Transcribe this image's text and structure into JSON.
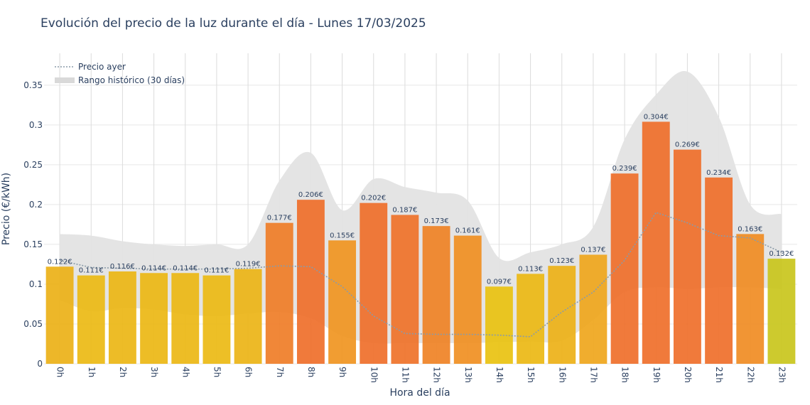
{
  "chart_data": {
    "type": "bar",
    "title": "Evolución del precio de la luz durante el día - Lunes 17/03/2025",
    "xlabel": "Hora del día",
    "ylabel": "Precio (€/kWh)",
    "ylim": [
      0,
      0.39
    ],
    "yticks": [
      "0",
      "0.05",
      "0.1",
      "0.15",
      "0.2",
      "0.25",
      "0.3",
      "0.35"
    ],
    "categories": [
      "0h",
      "1h",
      "2h",
      "3h",
      "4h",
      "5h",
      "6h",
      "7h",
      "8h",
      "9h",
      "10h",
      "11h",
      "12h",
      "13h",
      "14h",
      "15h",
      "16h",
      "17h",
      "18h",
      "19h",
      "20h",
      "21h",
      "22h",
      "23h"
    ],
    "values": [
      0.122,
      0.111,
      0.116,
      0.114,
      0.114,
      0.111,
      0.119,
      0.177,
      0.206,
      0.155,
      0.202,
      0.187,
      0.173,
      0.161,
      0.097,
      0.113,
      0.123,
      0.137,
      0.239,
      0.304,
      0.269,
      0.234,
      0.163,
      0.132
    ],
    "value_labels": [
      "0.122€",
      "0.111€",
      "0.116€",
      "0.114€",
      "0.114€",
      "0.111€",
      "0.119€",
      "0.177€",
      "0.206€",
      "0.155€",
      "0.202€",
      "0.187€",
      "0.173€",
      "0.161€",
      "0.097€",
      "0.113€",
      "0.123€",
      "0.137€",
      "0.239€",
      "0.304€",
      "0.269€",
      "0.234€",
      "0.163€",
      "0.132€"
    ],
    "series_lines": [
      {
        "name": "Precio ayer",
        "style": "dotted",
        "color": "#8a9ba8",
        "values": [
          0.13,
          0.121,
          0.12,
          0.119,
          0.119,
          0.119,
          0.12,
          0.123,
          0.122,
          0.097,
          0.06,
          0.038,
          0.037,
          0.037,
          0.036,
          0.034,
          0.065,
          0.09,
          0.13,
          0.19,
          0.177,
          0.161,
          0.158,
          0.14
        ]
      }
    ],
    "bands": [
      {
        "name": "Rango histórico (30 días)",
        "color": "#e3e3e3",
        "upper": [
          0.163,
          0.161,
          0.154,
          0.15,
          0.148,
          0.15,
          0.15,
          0.23,
          0.265,
          0.193,
          0.232,
          0.222,
          0.215,
          0.205,
          0.133,
          0.14,
          0.15,
          0.172,
          0.282,
          0.338,
          0.367,
          0.31,
          0.2,
          0.188
        ],
        "lower": [
          0.08,
          0.066,
          0.07,
          0.068,
          0.062,
          0.06,
          0.063,
          0.065,
          0.057,
          0.035,
          0.026,
          0.026,
          0.026,
          0.026,
          0.027,
          0.028,
          0.029,
          0.055,
          0.09,
          0.096,
          0.094,
          0.096,
          0.096,
          0.094
        ]
      }
    ],
    "legend": [
      {
        "label": "Precio ayer",
        "kind": "dotted-line",
        "color": "#8a9ba8"
      },
      {
        "label": "Rango histórico (30 días)",
        "kind": "band",
        "color": "#d9d9d9"
      }
    ],
    "legend_position": "top-left",
    "grid": true,
    "colors": {
      "low": "#e9c210",
      "mid": "#f0a01e",
      "high": "#ef6f2a",
      "last_bar": "#c9c61c",
      "axis_text": "#2a3f5f",
      "grid": "#e8e8e8"
    }
  }
}
